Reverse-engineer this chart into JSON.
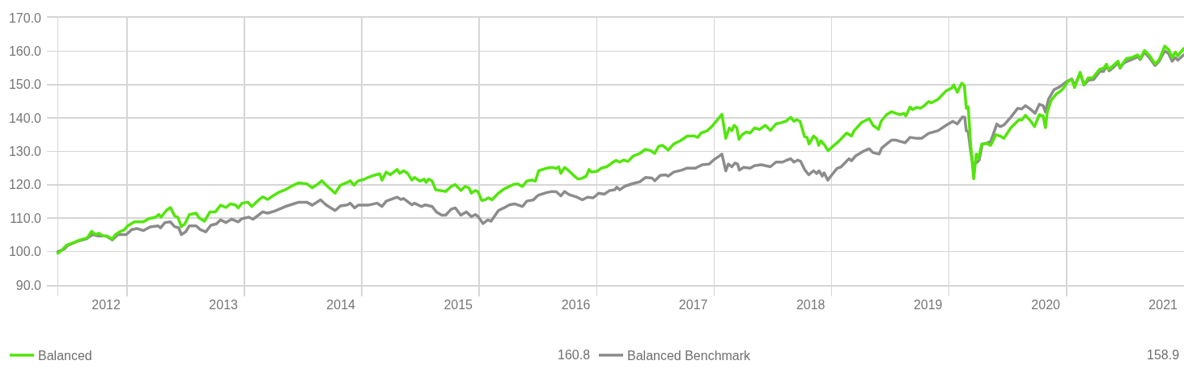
{
  "chart_data": {
    "type": "line",
    "xlim": [
      "2012-04-27",
      "2022-01-01"
    ],
    "xticks": [
      {
        "value": "2012-05-31",
        "label": null
      },
      {
        "value": "2012-10-28",
        "label": "2012"
      },
      {
        "value": "2013-01-01",
        "label": null
      },
      {
        "value": "2013-10-28",
        "label": "2013"
      },
      {
        "value": "2014-01-01",
        "label": null
      },
      {
        "value": "2014-10-28",
        "label": "2014"
      },
      {
        "value": "2015-01-01",
        "label": null
      },
      {
        "value": "2015-10-28",
        "label": "2015"
      },
      {
        "value": "2016-01-01",
        "label": null
      },
      {
        "value": "2016-10-28",
        "label": "2016"
      },
      {
        "value": "2017-01-01",
        "label": null
      },
      {
        "value": "2017-10-28",
        "label": "2017"
      },
      {
        "value": "2018-01-01",
        "label": null
      },
      {
        "value": "2018-10-28",
        "label": "2018"
      },
      {
        "value": "2019-01-01",
        "label": null
      },
      {
        "value": "2019-10-28",
        "label": "2019"
      },
      {
        "value": "2020-01-01",
        "label": null
      },
      {
        "value": "2020-10-28",
        "label": "2020"
      },
      {
        "value": "2021-01-01",
        "label": null
      },
      {
        "value": "2021-10-28",
        "label": "2021"
      }
    ],
    "ylim": [
      90,
      170
    ],
    "yticks": [
      {
        "value": 90,
        "label": "90.0"
      },
      {
        "value": 100,
        "label": "100.0"
      },
      {
        "value": 110,
        "label": "110.0"
      },
      {
        "value": 120,
        "label": "120.0"
      },
      {
        "value": 130,
        "label": "130.0"
      },
      {
        "value": 140,
        "label": "140.0"
      },
      {
        "value": 150,
        "label": "150.0"
      },
      {
        "value": 160,
        "label": "160.0"
      },
      {
        "value": 170,
        "label": "170.0"
      }
    ],
    "grid": true,
    "legend": "bottom",
    "annotations": [
      "160.8",
      "158.9"
    ],
    "series": [
      {
        "name": "Balanced",
        "color": "#52e60a",
        "x": [
          "2012-05-31",
          "2012-06-15",
          "2012-06-27",
          "2012-07-19",
          "2012-08-08",
          "2012-08-30",
          "2012-09-13",
          "2012-09-24",
          "2012-10-05",
          "2012-10-19",
          "2012-11-01",
          "2012-11-16",
          "2012-11-26",
          "2012-12-09",
          "2012-12-23",
          "2013-01-03",
          "2013-01-24",
          "2013-02-21",
          "2013-03-10",
          "2013-03-31",
          "2013-04-10",
          "2013-04-17",
          "2013-05-03",
          "2013-05-16",
          "2013-05-29",
          "2013-06-08",
          "2013-06-19",
          "2013-06-30",
          "2013-07-14",
          "2013-08-04",
          "2013-08-13",
          "2013-08-30",
          "2013-09-16",
          "2013-10-03",
          "2013-10-19",
          "2013-11-05",
          "2013-11-18",
          "2013-12-04",
          "2013-12-13",
          "2013-12-25",
          "2014-01-12",
          "2014-01-24",
          "2014-02-15",
          "2014-02-27",
          "2014-03-14",
          "2014-03-31",
          "2014-04-21",
          "2014-05-08",
          "2014-06-03",
          "2014-06-19",
          "2014-07-14",
          "2014-07-31",
          "2014-08-13",
          "2014-08-30",
          "2014-09-12",
          "2014-10-10",
          "2014-10-27",
          "2014-11-17",
          "2014-11-26",
          "2014-12-08",
          "2014-12-21",
          "2015-01-08",
          "2015-01-20",
          "2015-02-06",
          "2015-02-26",
          "2015-03-05",
          "2015-03-18",
          "2015-03-31",
          "2015-04-21",
          "2015-04-29",
          "2015-05-11",
          "2015-05-24",
          "2015-06-06",
          "2015-06-14",
          "2015-07-01",
          "2015-07-14",
          "2015-07-20",
          "2015-07-28",
          "2015-08-08",
          "2015-08-19",
          "2015-09-03",
          "2015-09-19",
          "2015-10-06",
          "2015-10-19",
          "2015-11-05",
          "2015-11-18",
          "2015-11-30",
          "2015-12-08",
          "2015-12-20",
          "2015-12-29",
          "2016-01-09",
          "2016-01-19",
          "2016-01-30",
          "2016-02-10",
          "2016-03-01",
          "2016-03-18",
          "2016-04-04",
          "2016-04-16",
          "2016-04-29",
          "2016-05-15",
          "2016-05-28",
          "2016-06-14",
          "2016-06-24",
          "2016-07-04",
          "2016-07-30",
          "2016-08-16",
          "2016-08-28",
          "2016-09-04",
          "2016-09-11",
          "2016-09-23",
          "2016-10-06",
          "2016-10-23",
          "2016-11-04",
          "2016-11-17",
          "2016-11-29",
          "2016-12-08",
          "2016-12-16",
          "2017-01-03",
          "2017-01-15",
          "2017-02-01",
          "2017-02-18",
          "2017-03-01",
          "2017-03-13",
          "2017-03-25",
          "2017-04-08",
          "2017-04-24",
          "2017-05-15",
          "2017-06-01",
          "2017-06-18",
          "2017-06-30",
          "2017-07-13",
          "2017-07-25",
          "2017-08-11",
          "2017-08-28",
          "2017-09-18",
          "2017-10-09",
          "2017-10-31",
          "2017-11-11",
          "2017-11-21",
          "2017-12-11",
          "2017-12-28",
          "2018-01-14",
          "2018-01-25",
          "2018-02-06",
          "2018-02-17",
          "2018-02-25",
          "2018-03-04",
          "2018-03-12",
          "2018-03-19",
          "2018-03-29",
          "2018-04-11",
          "2018-04-23",
          "2018-05-06",
          "2018-05-23",
          "2018-06-09",
          "2018-06-25",
          "2018-07-12",
          "2018-07-29",
          "2018-08-11",
          "2018-08-27",
          "2018-09-06",
          "2018-09-14",
          "2018-09-25",
          "2018-10-09",
          "2018-10-17",
          "2018-10-23",
          "2018-11-06",
          "2018-11-16",
          "2018-11-22",
          "2018-11-29",
          "2018-12-11",
          "2018-12-21",
          "2019-01-06",
          "2019-01-23",
          "2019-02-17",
          "2019-03-04",
          "2019-03-12",
          "2019-04-05",
          "2019-04-28",
          "2019-05-10",
          "2019-05-27",
          "2019-06-04",
          "2019-06-21",
          "2019-07-07",
          "2019-07-20",
          "2019-08-02",
          "2019-08-14",
          "2019-08-20",
          "2019-09-02",
          "2019-09-10",
          "2019-09-23",
          "2019-10-04",
          "2019-10-17",
          "2019-10-30",
          "2019-11-07",
          "2019-11-28",
          "2019-12-23",
          "2020-01-09",
          "2020-01-16",
          "2020-01-27",
          "2020-02-10",
          "2020-02-18",
          "2020-02-24",
          "2020-03-01",
          "2020-03-09",
          "2020-03-18",
          "2020-03-26",
          "2020-04-02",
          "2020-04-12",
          "2020-04-27",
          "2020-05-10",
          "2020-05-26",
          "2020-06-08",
          "2020-06-20",
          "2020-07-11",
          "2020-08-06",
          "2020-08-14",
          "2020-08-26",
          "2020-09-12",
          "2020-09-23",
          "2020-10-08",
          "2020-10-20",
          "2020-10-27",
          "2020-11-02",
          "2020-11-14",
          "2020-12-01",
          "2020-12-14",
          "2020-12-22",
          "2021-01-05",
          "2021-01-17",
          "2021-01-26",
          "2021-02-12",
          "2021-02-24",
          "2021-03-09",
          "2021-03-23",
          "2021-04-14",
          "2021-04-26",
          "2021-05-05",
          "2021-05-11",
          "2021-05-26",
          "2021-06-10",
          "2021-06-16",
          "2021-06-28",
          "2021-07-06",
          "2021-07-23",
          "2021-08-10",
          "2021-08-18",
          "2021-08-31",
          "2021-09-17",
          "2021-10-03",
          "2021-10-16",
          "2021-11-02",
          "2021-11-14",
          "2021-11-25",
          "2021-12-05",
          "2021-12-13",
          "2021-12-31"
        ],
        "values": [
          99.5,
          100.7,
          101.9,
          102.7,
          103.5,
          104.1,
          106.1,
          105.1,
          105.5,
          104.7,
          104.6,
          103.7,
          105.1,
          105.9,
          106.5,
          107.7,
          108.9,
          108.9,
          109.9,
          110.3,
          111.1,
          110.3,
          112.3,
          113.2,
          110.7,
          110.3,
          107.5,
          108.3,
          111.1,
          111.5,
          110.1,
          109.1,
          111.9,
          111.9,
          113.9,
          113.2,
          114.3,
          114.0,
          113.1,
          114.5,
          114.8,
          113.5,
          115.5,
          116.4,
          115.6,
          116.7,
          117.9,
          118.5,
          119.9,
          120.6,
          120.3,
          119.1,
          119.9,
          121.2,
          119.9,
          117.5,
          119.9,
          120.7,
          121.2,
          119.9,
          121.2,
          121.6,
          122.2,
          122.8,
          123.3,
          121.4,
          123.8,
          123.0,
          124.6,
          123.4,
          124.2,
          123.4,
          121.4,
          122.2,
          121.1,
          121.7,
          120.7,
          121.7,
          121.1,
          118.5,
          118.3,
          118.0,
          119.5,
          120.1,
          118.3,
          119.5,
          119.1,
          117.5,
          118.3,
          117.9,
          115.3,
          115.5,
          116.1,
          115.5,
          117.5,
          118.7,
          119.5,
          120.1,
          120.3,
          119.5,
          121.1,
          121.4,
          121.1,
          124.2,
          125.0,
          125.2,
          124.9,
          125.4,
          123.4,
          125.2,
          124.2,
          122.6,
          121.7,
          122.0,
          122.6,
          124.6,
          123.8,
          124.1,
          125.0,
          125.4,
          126.6,
          127.3,
          126.8,
          127.4,
          127.0,
          128.6,
          129.4,
          130.6,
          130.2,
          129.4,
          131.6,
          131.8,
          130.4,
          132.2,
          133.2,
          134.6,
          134.6,
          134.2,
          135.5,
          136.2,
          137.8,
          139.8,
          141.1,
          133.9,
          137.0,
          136.2,
          137.8,
          137.1,
          133.6,
          135.0,
          135.8,
          135.5,
          137.0,
          136.6,
          137.8,
          136.3,
          138.2,
          138.6,
          139.0,
          140.2,
          139.0,
          139.5,
          139.0,
          134.4,
          134.2,
          132.2,
          134.6,
          133.8,
          131.8,
          133.2,
          131.8,
          130.2,
          131.6,
          133.0,
          135.5,
          134.6,
          136.2,
          138.7,
          139.8,
          137.8,
          136.6,
          139.0,
          141.0,
          141.9,
          141.4,
          141.0,
          141.4,
          140.6,
          143.3,
          142.5,
          143.2,
          142.9,
          143.7,
          144.9,
          144.5,
          145.6,
          148.1,
          148.9,
          149.9,
          147.7,
          150.4,
          149.7,
          142.9,
          143.3,
          131.4,
          121.8,
          129.2,
          127.8,
          132.2,
          132.4,
          131.8,
          135.0,
          134.6,
          133.9,
          137.0,
          139.5,
          139.4,
          140.8,
          139.0,
          137.4,
          141.0,
          140.6,
          137.1,
          141.8,
          145.3,
          147.3,
          148.1,
          148.9,
          150.9,
          151.5,
          149.1,
          153.7,
          149.9,
          152.0,
          152.0,
          154.6,
          154.9,
          156.1,
          154.5,
          155.7,
          157.0,
          155.1,
          156.8,
          157.8,
          158.1,
          158.9,
          157.8,
          160.2,
          158.5,
          156.2,
          157.5,
          161.5,
          160.5,
          158.1,
          159.7,
          158.6,
          160.8
        ]
      },
      {
        "name": "Balanced Benchmark",
        "color": "#8c8c8c",
        "x": [
          "2012-05-31",
          "2012-06-19",
          "2012-07-01",
          "2012-07-31",
          "2012-08-30",
          "2012-09-15",
          "2012-10-03",
          "2012-10-28",
          "2012-11-16",
          "2012-12-04",
          "2012-12-30",
          "2013-01-16",
          "2013-02-02",
          "2013-02-21",
          "2013-03-14",
          "2013-04-08",
          "2013-04-15",
          "2013-04-29",
          "2013-05-16",
          "2013-05-29",
          "2013-06-11",
          "2013-06-19",
          "2013-07-02",
          "2013-07-14",
          "2013-08-04",
          "2013-08-17",
          "2013-09-03",
          "2013-09-19",
          "2013-10-06",
          "2013-10-19",
          "2013-11-05",
          "2013-11-22",
          "2013-12-13",
          "2013-12-25",
          "2014-01-15",
          "2014-01-28",
          "2014-02-27",
          "2014-03-14",
          "2014-04-04",
          "2014-05-08",
          "2014-06-03",
          "2014-06-19",
          "2014-07-14",
          "2014-07-31",
          "2014-08-26",
          "2014-09-12",
          "2014-10-10",
          "2014-10-27",
          "2014-11-17",
          "2014-11-26",
          "2014-12-10",
          "2014-12-21",
          "2015-01-20",
          "2015-02-18",
          "2015-03-05",
          "2015-03-18",
          "2015-04-21",
          "2015-05-03",
          "2015-05-11",
          "2015-06-06",
          "2015-06-14",
          "2015-07-05",
          "2015-07-18",
          "2015-07-31",
          "2015-08-08",
          "2015-08-21",
          "2015-09-07",
          "2015-09-19",
          "2015-10-06",
          "2015-10-19",
          "2015-11-05",
          "2015-11-22",
          "2015-12-08",
          "2015-12-20",
          "2015-12-29",
          "2016-01-13",
          "2016-01-28",
          "2016-02-07",
          "2016-03-01",
          "2016-03-18",
          "2016-04-04",
          "2016-04-20",
          "2016-04-29",
          "2016-05-15",
          "2016-05-28",
          "2016-06-18",
          "2016-06-26",
          "2016-07-04",
          "2016-07-30",
          "2016-08-16",
          "2016-08-28",
          "2016-09-11",
          "2016-09-23",
          "2016-10-06",
          "2016-10-31",
          "2016-11-17",
          "2016-12-03",
          "2016-12-21",
          "2017-01-07",
          "2017-01-24",
          "2017-02-10",
          "2017-02-26",
          "2017-03-04",
          "2017-03-13",
          "2017-03-30",
          "2017-04-24",
          "2017-05-15",
          "2017-06-01",
          "2017-06-22",
          "2017-06-30",
          "2017-07-17",
          "2017-08-03",
          "2017-08-11",
          "2017-08-28",
          "2017-09-23",
          "2017-10-09",
          "2017-11-04",
          "2017-11-12",
          "2017-11-25",
          "2017-12-16",
          "2018-01-01",
          "2018-01-14",
          "2018-01-25",
          "2018-02-06",
          "2018-02-14",
          "2018-02-25",
          "2018-03-06",
          "2018-03-15",
          "2018-03-20",
          "2018-04-02",
          "2018-04-23",
          "2018-05-06",
          "2018-05-27",
          "2018-06-25",
          "2018-07-12",
          "2018-08-02",
          "2018-08-15",
          "2018-08-27",
          "2018-09-06",
          "2018-09-18",
          "2018-09-27",
          "2018-10-09",
          "2018-10-22",
          "2018-11-06",
          "2018-11-16",
          "2018-11-23",
          "2018-12-03",
          "2018-12-09",
          "2018-12-20",
          "2019-01-02",
          "2019-01-18",
          "2019-01-31",
          "2019-02-24",
          "2019-03-04",
          "2019-03-16",
          "2019-04-07",
          "2019-04-28",
          "2019-05-10",
          "2019-05-29",
          "2019-06-06",
          "2019-06-21",
          "2019-07-07",
          "2019-07-20",
          "2019-08-02",
          "2019-08-18",
          "2019-09-02",
          "2019-09-23",
          "2019-10-08",
          "2019-10-30",
          "2019-11-28",
          "2019-12-23",
          "2020-01-13",
          "2020-01-27",
          "2020-02-12",
          "2020-02-19",
          "2020-02-24",
          "2020-03-01",
          "2020-03-09",
          "2020-03-16",
          "2020-03-29",
          "2020-04-04",
          "2020-04-14",
          "2020-04-27",
          "2020-05-10",
          "2020-05-29",
          "2020-06-08",
          "2020-06-20",
          "2020-07-11",
          "2020-08-02",
          "2020-08-14",
          "2020-08-26",
          "2020-09-12",
          "2020-09-25",
          "2020-10-08",
          "2020-10-20",
          "2020-10-27",
          "2020-11-06",
          "2020-11-23",
          "2020-12-10",
          "2021-01-01",
          "2021-01-17",
          "2021-01-26",
          "2021-02-12",
          "2021-02-24",
          "2021-03-10",
          "2021-03-26",
          "2021-04-14",
          "2021-04-26",
          "2021-05-05",
          "2021-05-13",
          "2021-05-28",
          "2021-06-10",
          "2021-06-16",
          "2021-06-28",
          "2021-07-23",
          "2021-08-10",
          "2021-08-18",
          "2021-08-31",
          "2021-09-17",
          "2021-10-03",
          "2021-10-16",
          "2021-11-02",
          "2021-11-14",
          "2021-11-25",
          "2021-12-05",
          "2021-12-13",
          "2021-12-31"
        ],
        "values": [
          100.0,
          100.7,
          101.9,
          103.1,
          103.9,
          105.1,
          104.7,
          104.7,
          103.5,
          105.1,
          105.1,
          106.6,
          106.9,
          106.3,
          107.4,
          107.7,
          107.1,
          108.7,
          108.9,
          107.5,
          107.1,
          105.1,
          105.9,
          107.7,
          107.7,
          106.6,
          105.9,
          107.9,
          108.3,
          109.5,
          108.7,
          109.7,
          108.9,
          109.9,
          110.3,
          109.7,
          111.9,
          111.5,
          112.1,
          113.5,
          114.3,
          114.8,
          114.8,
          113.9,
          115.5,
          114.0,
          112.3,
          113.7,
          114.0,
          114.5,
          113.1,
          113.9,
          113.9,
          114.5,
          113.5,
          115.1,
          116.3,
          115.6,
          115.9,
          114.0,
          114.5,
          113.5,
          114.0,
          113.7,
          113.5,
          111.9,
          110.9,
          110.9,
          112.7,
          113.1,
          110.9,
          111.9,
          110.5,
          111.1,
          110.5,
          108.4,
          109.5,
          109.1,
          112.3,
          113.1,
          114.0,
          114.3,
          114.0,
          113.5,
          115.1,
          115.5,
          116.3,
          116.9,
          117.7,
          118.0,
          117.9,
          116.7,
          118.0,
          117.1,
          116.3,
          115.5,
          116.3,
          116.1,
          117.5,
          117.2,
          118.3,
          118.5,
          119.3,
          118.5,
          119.6,
          120.4,
          120.9,
          122.2,
          122.0,
          121.2,
          122.8,
          123.0,
          122.6,
          123.8,
          124.4,
          125.0,
          125.0,
          125.4,
          126.0,
          126.2,
          127.6,
          128.4,
          129.2,
          124.2,
          126.2,
          125.4,
          126.5,
          126.2,
          124.4,
          125.2,
          125.0,
          125.7,
          126.0,
          125.4,
          126.8,
          126.8,
          127.4,
          127.8,
          126.8,
          127.4,
          127.0,
          124.6,
          123.0,
          124.2,
          123.4,
          124.2,
          122.6,
          123.6,
          121.4,
          123.0,
          124.9,
          125.4,
          127.8,
          127.2,
          128.6,
          129.9,
          130.8,
          129.6,
          129.2,
          131.0,
          132.2,
          133.4,
          133.4,
          133.0,
          132.6,
          134.2,
          133.9,
          133.9,
          135.4,
          136.2,
          137.8,
          139.0,
          138.2,
          140.3,
          140.2,
          136.2,
          135.8,
          129.8,
          126.0,
          126.8,
          127.4,
          132.2,
          132.4,
          133.0,
          138.2,
          137.4,
          137.9,
          140.2,
          142.9,
          142.7,
          143.7,
          142.5,
          141.4,
          144.1,
          143.7,
          141.8,
          145.7,
          148.5,
          149.3,
          150.9,
          151.7,
          149.7,
          153.3,
          149.9,
          151.3,
          151.5,
          153.9,
          153.9,
          155.7,
          154.1,
          155.3,
          156.5,
          154.9,
          156.5,
          157.5,
          158.3,
          157.5,
          159.7,
          157.8,
          155.7,
          157.0,
          160.1,
          159.3,
          157.0,
          158.1,
          157.3,
          158.9
        ]
      }
    ]
  }
}
